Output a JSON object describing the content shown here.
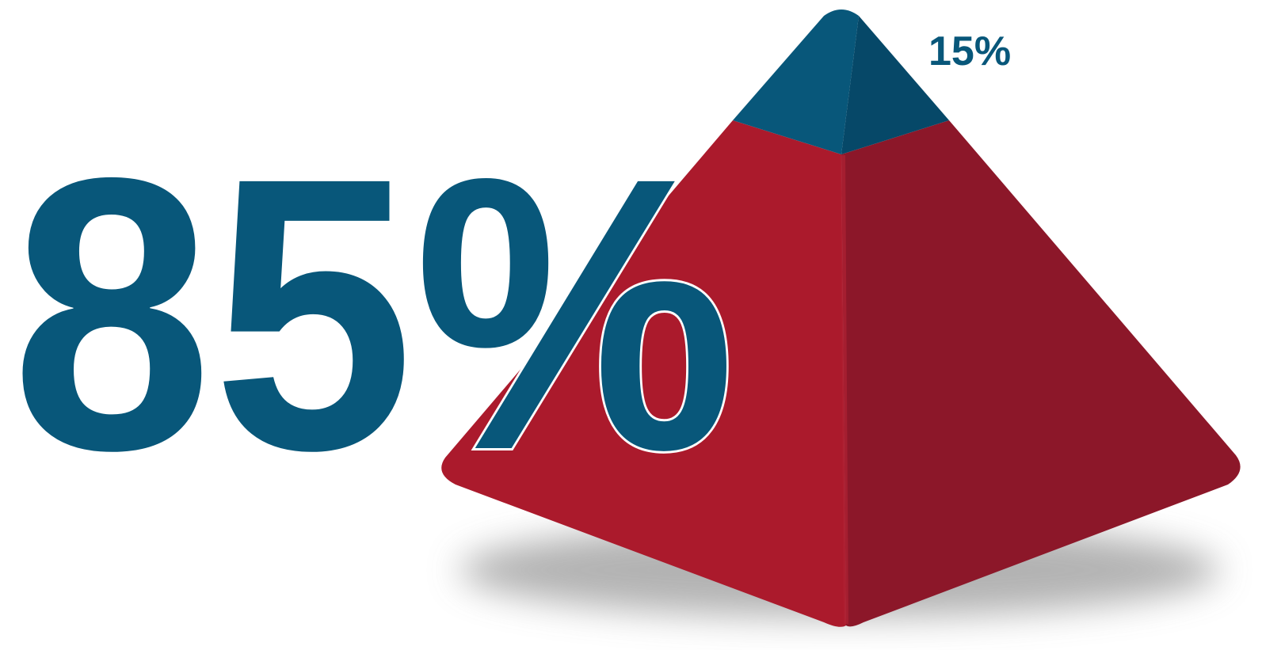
{
  "labels": {
    "main": "85%",
    "top": "15%"
  }
}
